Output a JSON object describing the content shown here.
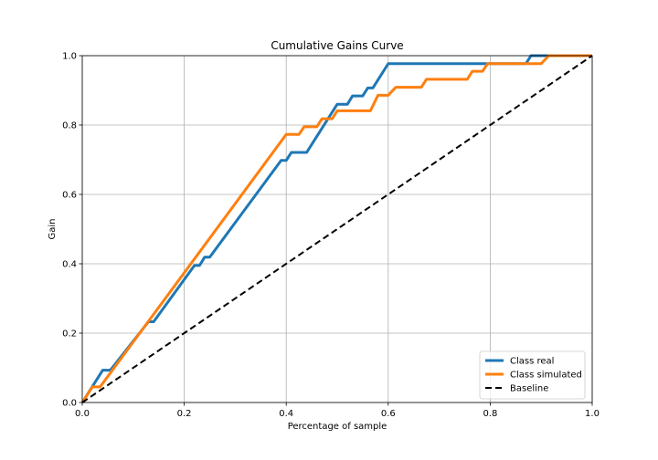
{
  "chart_data": {
    "type": "line",
    "title": "Cumulative Gains Curve",
    "xlabel": "Percentage of sample",
    "ylabel": "Gain",
    "xlim": [
      0,
      1
    ],
    "ylim": [
      0,
      1
    ],
    "xticks": [
      "0.0",
      "0.2",
      "0.4",
      "0.6",
      "0.8",
      "1.0"
    ],
    "yticks": [
      "0.0",
      "0.2",
      "0.4",
      "0.6",
      "0.8",
      "1.0"
    ],
    "grid": true,
    "legend_position": "bottom-right",
    "series": [
      {
        "name": "Class real",
        "color": "#1f77b4",
        "style": "solid",
        "x": [
          0.0,
          0.04,
          0.055,
          0.13,
          0.14,
          0.22,
          0.23,
          0.24,
          0.25,
          0.39,
          0.4,
          0.41,
          0.44,
          0.5,
          0.52,
          0.53,
          0.55,
          0.56,
          0.57,
          0.6,
          0.79,
          0.8,
          0.87,
          0.88,
          1.0
        ],
        "y": [
          0.0,
          0.093,
          0.093,
          0.233,
          0.233,
          0.395,
          0.395,
          0.419,
          0.419,
          0.698,
          0.698,
          0.721,
          0.721,
          0.86,
          0.86,
          0.884,
          0.884,
          0.907,
          0.907,
          0.977,
          0.977,
          0.977,
          0.977,
          1.0,
          1.0
        ]
      },
      {
        "name": "Class simulated",
        "color": "#ff7f0e",
        "style": "solid",
        "x": [
          0.0,
          0.02,
          0.035,
          0.4,
          0.425,
          0.435,
          0.46,
          0.47,
          0.48,
          0.49,
          0.5,
          0.565,
          0.58,
          0.6,
          0.615,
          0.625,
          0.665,
          0.675,
          0.755,
          0.765,
          0.785,
          0.795,
          0.82,
          0.9,
          0.915,
          1.0
        ],
        "y": [
          0.0,
          0.045,
          0.045,
          0.773,
          0.773,
          0.795,
          0.795,
          0.818,
          0.818,
          0.818,
          0.841,
          0.841,
          0.886,
          0.886,
          0.909,
          0.909,
          0.909,
          0.932,
          0.932,
          0.955,
          0.955,
          0.977,
          0.977,
          0.977,
          1.0,
          1.0
        ]
      },
      {
        "name": "Baseline",
        "color": "#000000",
        "style": "dashed",
        "x": [
          0.0,
          1.0
        ],
        "y": [
          0.0,
          1.0
        ]
      }
    ]
  }
}
